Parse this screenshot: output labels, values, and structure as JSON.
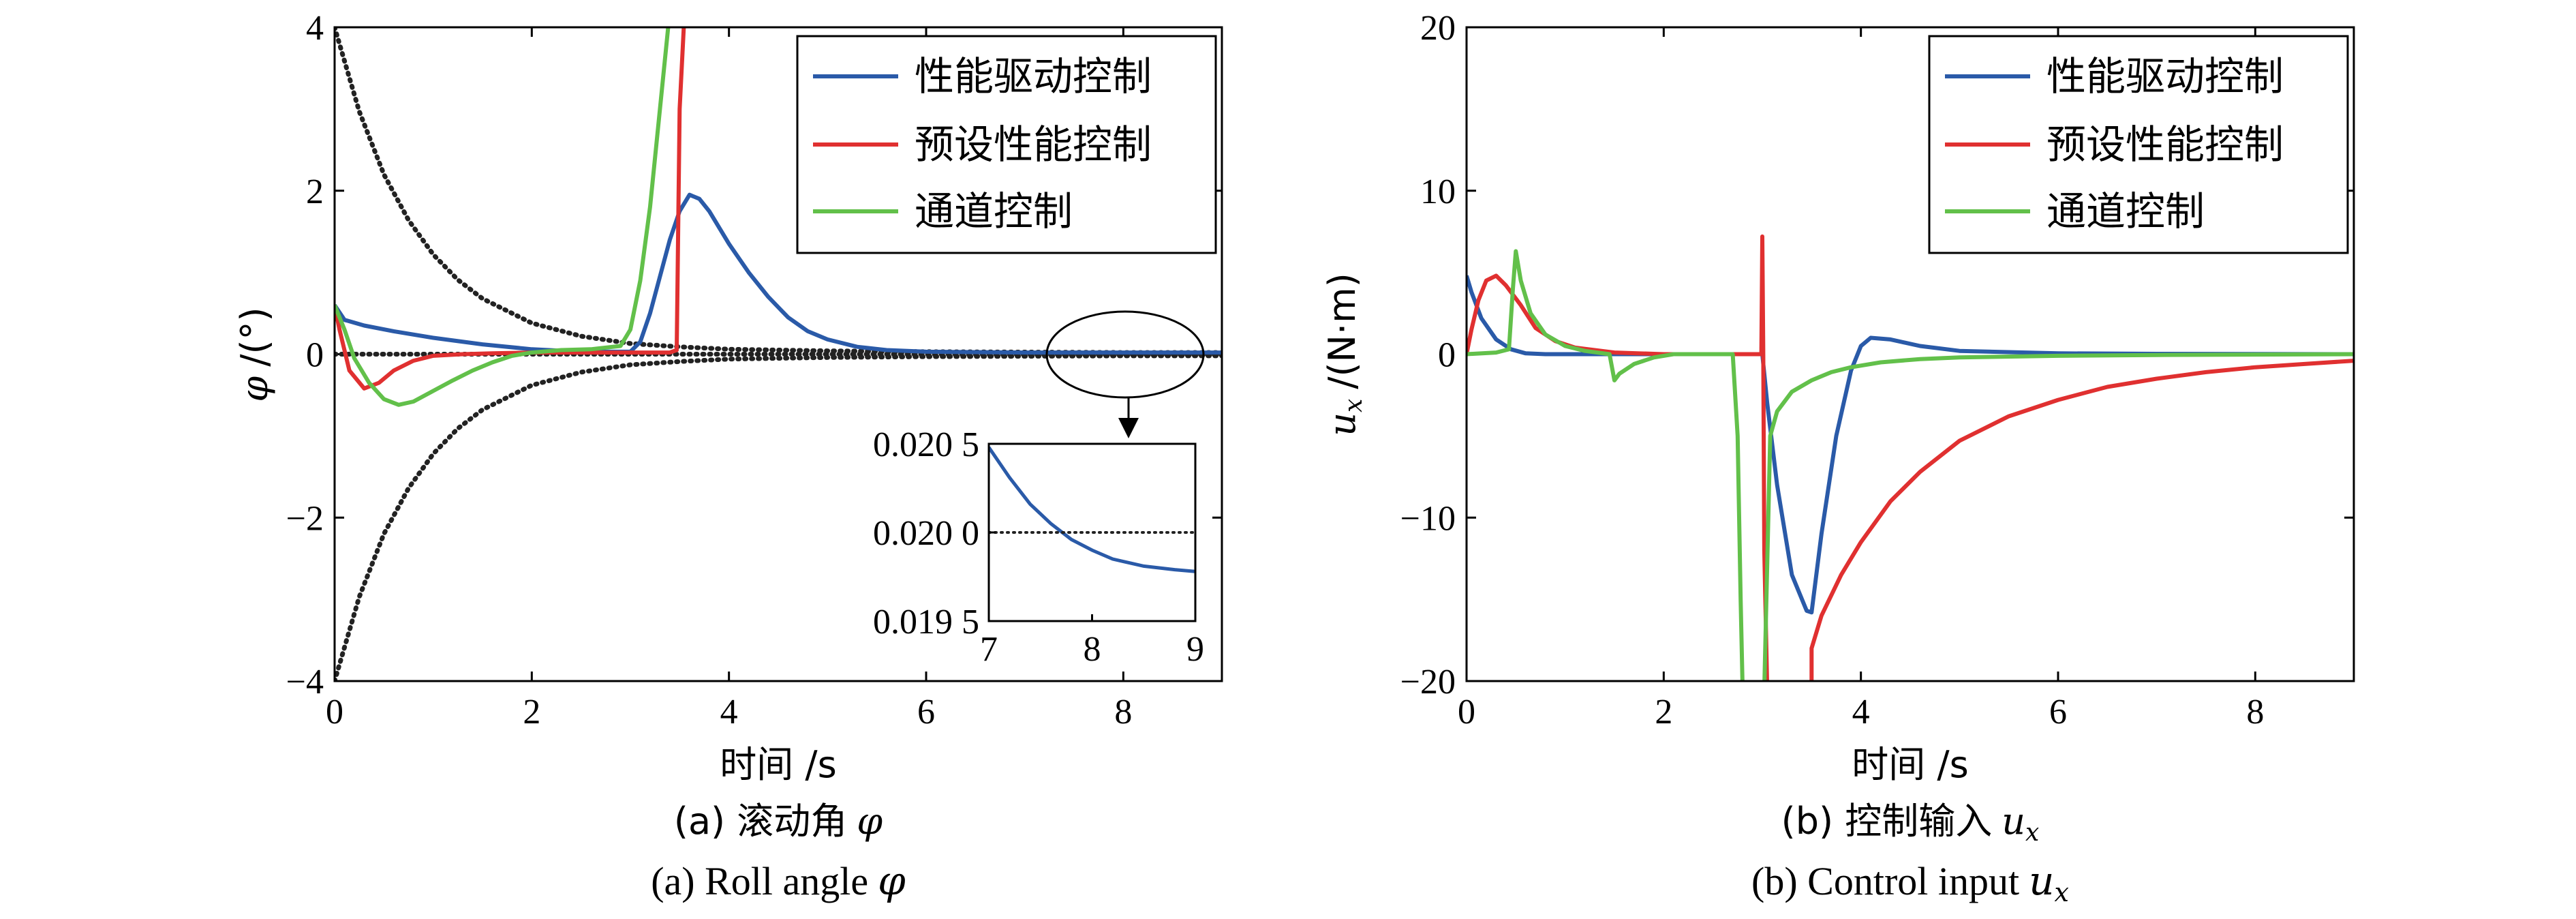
{
  "chart_data": [
    {
      "type": "line",
      "caption_cn": "(a) 滚动角",
      "caption_en": "(a) Roll angle",
      "caption_symbol": "φ",
      "ylabel_symbol": "φ",
      "ylabel_unit": "/(°)",
      "xlabel": "时间 /s",
      "xlim": [
        0,
        9
      ],
      "ylim": [
        -4,
        4
      ],
      "xticks": [
        0,
        2,
        4,
        6,
        8
      ],
      "yticks": [
        -4,
        -2,
        0,
        2,
        4
      ],
      "ytick_labels": [
        "−4",
        "−2",
        "0",
        "2",
        "4"
      ],
      "legend_position": "top-right",
      "series": [
        {
          "name": "性能驱动控制",
          "color": "#2a5aa8",
          "x": [
            0,
            0.1,
            0.3,
            0.6,
            1.0,
            1.5,
            2.0,
            2.5,
            3.0,
            3.1,
            3.2,
            3.3,
            3.4,
            3.5,
            3.6,
            3.7,
            3.8,
            3.9,
            4.0,
            4.2,
            4.4,
            4.6,
            4.8,
            5.0,
            5.3,
            5.6,
            6.0,
            7.0,
            8.0,
            9.0
          ],
          "y": [
            0.6,
            0.42,
            0.35,
            0.28,
            0.2,
            0.12,
            0.06,
            0.03,
            0.03,
            0.15,
            0.5,
            0.95,
            1.4,
            1.75,
            1.95,
            1.9,
            1.75,
            1.55,
            1.35,
            1.0,
            0.7,
            0.45,
            0.28,
            0.18,
            0.09,
            0.05,
            0.03,
            0.02,
            0.02,
            0.02
          ]
        },
        {
          "name": "预设性能控制",
          "color": "#e03030",
          "x": [
            0,
            0.05,
            0.15,
            0.3,
            0.45,
            0.6,
            0.8,
            1.0,
            1.3,
            1.6,
            2.0,
            2.5,
            3.0,
            3.4,
            3.47,
            3.5,
            3.55
          ],
          "y": [
            0.6,
            0.3,
            -0.2,
            -0.42,
            -0.35,
            -0.2,
            -0.08,
            -0.02,
            0.0,
            0.01,
            0.02,
            0.02,
            0.02,
            0.02,
            0.05,
            3.0,
            4.2
          ]
        },
        {
          "name": "通道控制",
          "color": "#62c04a",
          "x": [
            0,
            0.1,
            0.2,
            0.35,
            0.5,
            0.65,
            0.8,
            1.0,
            1.2,
            1.4,
            1.6,
            1.8,
            2.0,
            2.3,
            2.6,
            2.9,
            3.0,
            3.1,
            3.2,
            3.3,
            3.4
          ],
          "y": [
            0.6,
            0.3,
            -0.05,
            -0.35,
            -0.55,
            -0.62,
            -0.58,
            -0.45,
            -0.32,
            -0.2,
            -0.1,
            -0.02,
            0.02,
            0.05,
            0.06,
            0.1,
            0.3,
            0.9,
            1.8,
            3.0,
            4.2
          ]
        }
      ],
      "bounds": [
        {
          "style": "dotted",
          "color": "#222222",
          "x": [
            0,
            0.25,
            0.5,
            0.75,
            1.0,
            1.25,
            1.5,
            2.0,
            2.5,
            3.0,
            3.5,
            4.0,
            5.0,
            6.0,
            7.0,
            8.0,
            9.0
          ],
          "y": [
            4.0,
            2.97,
            2.2,
            1.64,
            1.22,
            0.91,
            0.68,
            0.38,
            0.22,
            0.13,
            0.09,
            0.06,
            0.04,
            0.03,
            0.025,
            0.02,
            0.02
          ]
        },
        {
          "style": "dotted",
          "color": "#222222",
          "x": [
            0,
            0.25,
            0.5,
            0.75,
            1.0,
            1.25,
            1.5,
            2.0,
            2.5,
            3.0,
            3.5,
            4.0,
            5.0,
            6.0,
            7.0,
            8.0,
            9.0
          ],
          "y": [
            -4.0,
            -2.97,
            -2.2,
            -1.64,
            -1.22,
            -0.91,
            -0.68,
            -0.38,
            -0.22,
            -0.13,
            -0.09,
            -0.06,
            -0.04,
            -0.03,
            -0.025,
            -0.02,
            -0.02
          ]
        },
        {
          "style": "dotted",
          "color": "#222222",
          "x": [
            0,
            9
          ],
          "y": [
            0,
            0
          ]
        }
      ],
      "inset": {
        "xlim": [
          7,
          9
        ],
        "ylim": [
          0.0195,
          0.0205
        ],
        "xticks": [
          7,
          8,
          9
        ],
        "yticks": [
          0.0195,
          0.02,
          0.0205
        ],
        "ytick_labels": [
          "0.019 5",
          "0.020 0",
          "0.020 5"
        ],
        "series": [
          {
            "name": "性能驱动控制",
            "color": "#2a5aa8",
            "x": [
              7.0,
              7.2,
              7.4,
              7.6,
              7.8,
              8.0,
              8.2,
              8.5,
              8.8,
              9.0
            ],
            "y": [
              0.02048,
              0.02031,
              0.02016,
              0.02005,
              0.01996,
              0.0199,
              0.01985,
              0.01981,
              0.01979,
              0.01978
            ]
          },
          {
            "style": "dotted",
            "color": "#222222",
            "x": [
              7,
              9
            ],
            "y": [
              0.02,
              0.02
            ]
          }
        ]
      }
    },
    {
      "type": "line",
      "caption_cn": "(b) 控制输入",
      "caption_en": "(b) Control input",
      "caption_symbol": "u",
      "caption_symbol_sub": "x",
      "ylabel_symbol": "u",
      "ylabel_symbol_sub": "x",
      "ylabel_unit": "/(N·m)",
      "xlabel": "时间 /s",
      "xlim": [
        0,
        9
      ],
      "ylim": [
        -20,
        20
      ],
      "xticks": [
        0,
        2,
        4,
        6,
        8
      ],
      "yticks": [
        -20,
        -10,
        0,
        10,
        20
      ],
      "ytick_labels": [
        "−20",
        "−10",
        "0",
        "10",
        "20"
      ],
      "legend_position": "top-right",
      "series": [
        {
          "name": "性能驱动控制",
          "color": "#2a5aa8",
          "x": [
            0,
            0.05,
            0.15,
            0.3,
            0.45,
            0.6,
            0.8,
            1.0,
            1.5,
            2.0,
            2.5,
            2.95,
            3.0,
            3.05,
            3.15,
            3.3,
            3.45,
            3.5,
            3.6,
            3.75,
            3.9,
            4.0,
            4.1,
            4.3,
            4.6,
            5.0,
            6.0,
            7.0,
            9.0
          ],
          "y": [
            4.8,
            3.8,
            2.2,
            0.9,
            0.3,
            0.05,
            0.0,
            0.0,
            0.0,
            0.0,
            0.0,
            0.0,
            0.0,
            -3.0,
            -8.0,
            -13.5,
            -15.7,
            -15.8,
            -11.0,
            -5.0,
            -1.0,
            0.5,
            1.0,
            0.9,
            0.5,
            0.2,
            0.05,
            0.02,
            0.0
          ]
        },
        {
          "name": "预设性能控制",
          "color": "#e03030",
          "x": [
            0,
            0.05,
            0.12,
            0.2,
            0.3,
            0.4,
            0.55,
            0.7,
            0.9,
            1.1,
            1.5,
            2.0,
            2.5,
            2.95,
            2.99,
            3.0,
            3.01,
            3.02,
            3.05,
            3.06
          ],
          "y": [
            0.0,
            1.5,
            3.3,
            4.5,
            4.8,
            4.2,
            3.0,
            1.6,
            0.8,
            0.4,
            0.1,
            0.0,
            0.0,
            0.0,
            0.0,
            7.2,
            0.0,
            -12.0,
            -20.5,
            -20.5
          ]
        },
        {
          "name": "预设性能控制-2",
          "color": "#e03030",
          "continuation": true,
          "x": [
            3.5,
            3.5,
            3.6,
            3.8,
            4.0,
            4.3,
            4.6,
            5.0,
            5.5,
            6.0,
            6.5,
            7.0,
            7.5,
            8.0,
            8.5,
            9.0
          ],
          "y": [
            -20.5,
            -18.0,
            -16.0,
            -13.5,
            -11.5,
            -9.0,
            -7.2,
            -5.3,
            -3.8,
            -2.8,
            -2.0,
            -1.5,
            -1.1,
            -0.8,
            -0.6,
            -0.4
          ]
        },
        {
          "name": "通道控制",
          "color": "#62c04a",
          "x": [
            0,
            0.3,
            0.43,
            0.47,
            0.5,
            0.55,
            0.65,
            0.8,
            1.0,
            1.2,
            1.45,
            1.5,
            1.55,
            1.7,
            1.9,
            2.1,
            2.4,
            2.7,
            2.75,
            2.78,
            2.8
          ],
          "y": [
            0.0,
            0.1,
            0.3,
            4.0,
            6.3,
            4.5,
            2.5,
            1.2,
            0.5,
            0.2,
            0.0,
            -1.6,
            -1.2,
            -0.6,
            -0.2,
            0.0,
            0.0,
            0.0,
            -5.0,
            -15.0,
            -20.5
          ]
        },
        {
          "name": "通道控制-2",
          "color": "#62c04a",
          "continuation": true,
          "x": [
            3.02,
            3.08,
            3.15,
            3.3,
            3.5,
            3.7,
            3.9,
            4.2,
            4.6,
            5.0,
            6.0,
            7.0,
            9.0
          ],
          "y": [
            -20.5,
            -5.0,
            -3.5,
            -2.3,
            -1.6,
            -1.1,
            -0.8,
            -0.5,
            -0.3,
            -0.2,
            -0.1,
            -0.05,
            0.0
          ]
        }
      ]
    }
  ]
}
